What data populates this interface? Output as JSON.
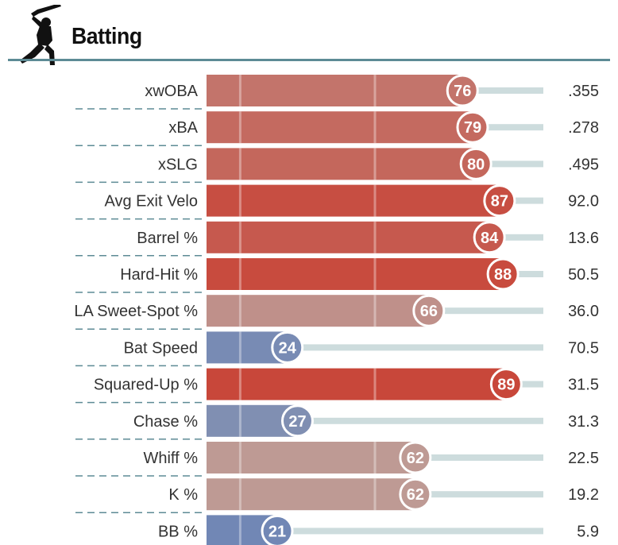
{
  "header": {
    "title": "Batting",
    "icon": "batter-silhouette-icon"
  },
  "colors": {
    "header_rule": "#5d8b95",
    "dash": "#5d8b95",
    "track": "#cddcdd",
    "tick": "#ffffff",
    "scale_low": "#6e86b5",
    "scale_mid": "#bcaeaa",
    "scale_high": "#c8473a"
  },
  "chart_data": {
    "type": "bar",
    "orientation": "horizontal",
    "title": "Batting",
    "xlim": [
      0,
      100
    ],
    "reference_ticks": [
      10,
      50
    ],
    "rows": [
      {
        "label": "xwOBA",
        "percentile": 76,
        "value": ".355"
      },
      {
        "label": "xBA",
        "percentile": 79,
        "value": ".278"
      },
      {
        "label": "xSLG",
        "percentile": 80,
        "value": ".495"
      },
      {
        "label": "Avg Exit Velo",
        "percentile": 87,
        "value": "92.0"
      },
      {
        "label": "Barrel %",
        "percentile": 84,
        "value": "13.6"
      },
      {
        "label": "Hard-Hit %",
        "percentile": 88,
        "value": "50.5"
      },
      {
        "label": "LA Sweet-Spot %",
        "percentile": 66,
        "value": "36.0"
      },
      {
        "label": "Bat Speed",
        "percentile": 24,
        "value": "70.5"
      },
      {
        "label": "Squared-Up %",
        "percentile": 89,
        "value": "31.5"
      },
      {
        "label": "Chase %",
        "percentile": 27,
        "value": "31.3"
      },
      {
        "label": "Whiff %",
        "percentile": 62,
        "value": "22.5"
      },
      {
        "label": "K %",
        "percentile": 62,
        "value": "19.2"
      },
      {
        "label": "BB %",
        "percentile": 21,
        "value": "5.9"
      }
    ]
  }
}
